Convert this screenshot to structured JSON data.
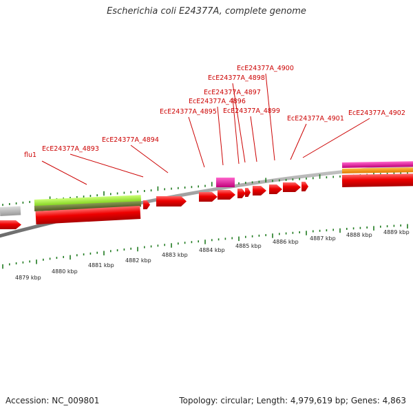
{
  "title": "Escherichia coli E24377A, complete genome",
  "footer": {
    "accession": "Accession: NC_009801",
    "summary": "Topology: circular; Length: 4,979,619 bp; Genes: 4,863"
  },
  "colors": {
    "gene": "#ee0000",
    "label": "#cc0000",
    "tick": "#1e7a1e",
    "backbone": "#8a8a8a",
    "rna_pink": "#e0169a",
    "orange": "#ff9900",
    "lime": "#99ee33",
    "olive": "#667733",
    "gray_feature": "#bbbbbb"
  },
  "scale": {
    "unit": "kbp",
    "labels": [
      "4879 kbp",
      "4880 kbp",
      "4881 kbp",
      "4882 kbp",
      "4883 kbp",
      "4884 kbp",
      "4885 kbp",
      "4886 kbp",
      "4887 kbp",
      "4888 kbp",
      "4889 kbp"
    ]
  },
  "gene_labels": [
    "flu1",
    "EcE24377A_4893",
    "EcE24377A_4894",
    "EcE24377A_4895",
    "EcE24377A_4896",
    "EcE24377A_4897",
    "EcE24377A_4898",
    "EcE24377A_4899",
    "EcE24377A_4900",
    "EcE24377A_4901",
    "EcE24377A_4902"
  ]
}
